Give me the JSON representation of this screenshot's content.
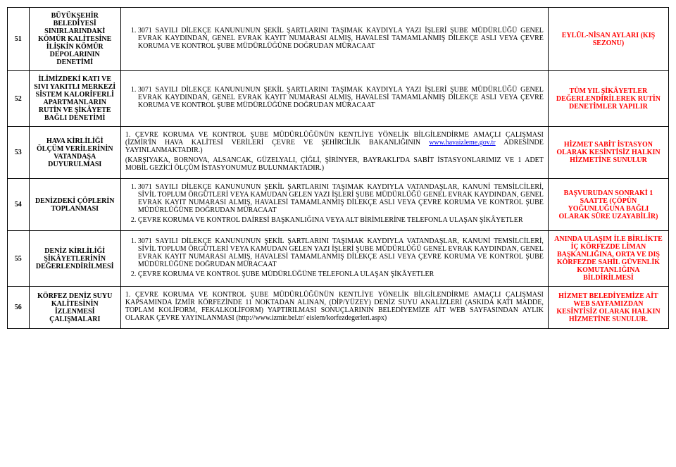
{
  "rows": [
    {
      "num": "51",
      "title": "BÜYÜKŞEHİR BELEDİYESİ SINIRLARINDAKİ KÖMÜR KALİTESİNE İLİŞKİN KÖMÜR DEPOLARININ DENETİMİ",
      "bodyItems": [
        "3071 SAYILI DİLEKÇE KANUNUNUN ŞEKİL ŞARTLARINI TAŞIMAK KAYDIYLA YAZI İŞLERİ ŞUBE MÜDÜRLÜĞÜ GENEL EVRAK KAYDINDAN, GENEL EVRAK KAYIT NUMARASI ALMIŞ, HAVALESİ TAMAMLANMIŞ DİLEKÇE ASLI VEYA ÇEVRE KORUMA VE KONTROL ŞUBE MÜDÜRLÜĞÜNE DOĞRUDAN MÜRACAAT"
      ],
      "right": "EYLÜL-NİSAN AYLARI (KIŞ SEZONU)"
    },
    {
      "num": "52",
      "title": "İLİMİZDEKİ KATI VE SIVI YAKITLI MERKEZİ SİSTEM KALORİFERLİ APARTMANLARIN RUTİN VE ŞİKÂYETE BAĞLI DENETİMİ",
      "bodyItems": [
        "3071 SAYILI DİLEKÇE KANUNUNUN ŞEKİL ŞARTLARINI TAŞIMAK KAYDIYLA YAZI İŞLERİ ŞUBE MÜDÜRLÜĞÜ GENEL EVRAK KAYDINDAN, GENEL EVRAK KAYIT NUMARASI ALMIŞ, HAVALESİ TAMAMLANMIŞ DİLEKÇE ASLI VEYA ÇEVRE KORUMA VE KONTROL ŞUBE MÜDÜRLÜĞÜNE DOĞRUDAN MÜRACAAT"
      ],
      "right": "TÜM YIL ŞİKÂYETLER DEĞERLENDİRİLEREK RUTİN DENETİMLER YAPILIR"
    },
    {
      "num": "53",
      "title": "HAVA KİRLİLİĞİ ÖLÇÜM VERİLERİNİN VATANDAŞA DUYURULMASI",
      "bodyParas": [
        {
          "pre": "1. ÇEVRE KORUMA VE KONTROL ŞUBE MÜDÜRLÜĞÜNÜN KENTLİYE YÖNELİK BİLGİLENDİRME AMAÇLI ÇALIŞMASI (İZMİR'İN HAVA KALİTESİ VERİLERİ ÇEVRE VE ŞEHİRCİLİK BAKANLIĞININ ",
          "link": "www.havaizleme.gov.tr",
          "post": " ADRESİNDE YAYINLANMAKTADIR.)"
        },
        {
          "text": "(KARŞIYAKA, BORNOVA, ALSANCAK, GÜZELYALI, ÇİĞLİ, ŞİRİNYER, BAYRAKLI'DA SABİT İSTASYONLARIMIZ VE 1 ADET MOBİL GEZİCİ ÖLÇÜM İSTASYONUMUZ BULUNMAKTADIR.)"
        }
      ],
      "right": "HİZMET SABİT İSTASYON OLARAK KESİNTİSİZ HALKIN HİZMETİNE SUNULUR"
    },
    {
      "num": "54",
      "title": "DENİZDEKİ ÇÖPLERİN TOPLANMASI",
      "bodyItems": [
        "3071 SAYILI DİLEKÇE KANUNUNUN ŞEKİL ŞARTLARINI TAŞIMAK KAYDIYLA VATANDAŞLAR, KANUNİ TEMSİLCİLERİ, SİVİL TOPLUM ÖRGÜTLERİ VEYA KAMUDAN GELEN YAZI İŞLERİ ŞUBE MÜDÜRLÜĞÜ GENEL EVRAK KAYDINDAN, GENEL EVRAK KAYIT NUMARASI ALMIŞ, HAVALESİ TAMAMLANMIŞ DİLEKÇE ASLI VEYA ÇEVRE KORUMA VE KONTROL ŞUBE MÜDÜRLÜĞÜNE DOĞRUDAN MÜRACAAT",
        "ÇEVRE KORUMA VE KONTROL DAİRESİ BAŞKANLIĞINA VEYA ALT BİRİMLERİNE TELEFONLA ULAŞAN ŞİKÂYETLER"
      ],
      "right": "BAŞVURUDAN SONRAKİ 1 SAATTE (ÇÖPÜN YOĞUNLUĞUNA BAĞLI OLARAK SÜRE UZAYABİLİR)"
    },
    {
      "num": "55",
      "title": "DENİZ KİRLİLİĞİ ŞİKÂYETLERİNİN DEĞERLENDİRİLMESİ",
      "bodyItems": [
        "3071 SAYILI DİLEKÇE KANUNUNUN ŞEKİL ŞARTLARINI TAŞIMAK KAYDIYLA VATANDAŞLAR, KANUNİ TEMSİLCİLERİ, SİVİL TOPLUM ÖRGÜTLERİ VEYA KAMUDAN GELEN YAZI İŞLERİ ŞUBE MÜDÜRLÜĞÜ GENEL EVRAK KAYDINDAN, GENEL EVRAK KAYIT NUMARASI ALMIŞ, HAVALESİ TAMAMLANMIŞ DİLEKÇE ASLI VEYA ÇEVRE KORUMA VE KONTROL ŞUBE MÜDÜRLÜĞÜNE DOĞRUDAN MÜRACAAT",
        "ÇEVRE KORUMA VE KONTROL ŞUBE MÜDÜRLÜĞÜNE TELEFONLA ULAŞAN ŞİKÂYETLER"
      ],
      "right": "ANINDA ULAŞIM İLE BİRLİKTE İÇ KÖRFEZDE LİMAN BAŞKANLIĞINA, ORTA VE DIŞ KÖRFEZDE SAHİL GÜVENLİK KOMUTANLIĞINA BİLDİRİLMESİ"
    },
    {
      "num": "56",
      "title": "KÖRFEZ DENİZ SUYU KALİTESİNİN İZLENMESİ ÇALIŞMALARI",
      "bodyParas": [
        {
          "text": "1. ÇEVRE KORUMA VE KONTROL ŞUBE MÜDÜRLÜĞÜNÜN KENTLİYE YÖNELİK BİLGİLENDİRME AMAÇLI ÇALIŞMASI KAPSAMINDA İZMİR KÖRFEZİNDE 11 NOKTADAN ALINAN, (DİP/YÜZEY) DENİZ SUYU ANALİZLERİ (ASKIDA KATI MADDE, TOPLAM KOLİFORM, FEKALKOLİFORM) YAPTIRILMASI SONUÇLARININ BELEDİYEMİZE AİT WEB SAYFASINDAN AYLIK OLARAK ÇEVRE YAYINLANMASI (http://www.izmir.bel.tr/ eislem/korfezdegerleri.aspx)"
        }
      ],
      "right": "HİZMET BELEDİYEMİZE AİT WEB SAYFAMIZDAN KESİNTİSİZ OLARAK HALKIN HİZMETİNE SUNULUR."
    }
  ]
}
